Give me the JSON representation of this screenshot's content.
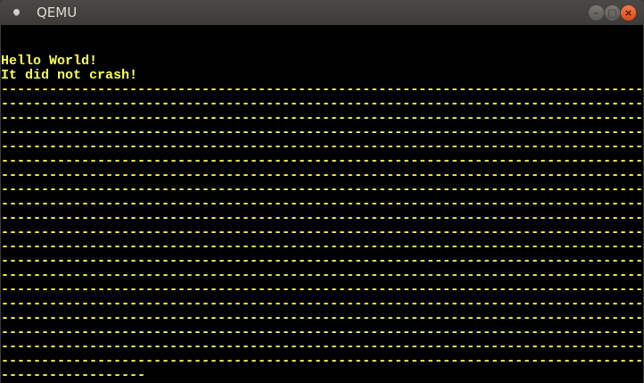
{
  "window": {
    "title": "QEMU",
    "icons": {
      "app": "qemu-app-icon",
      "minimize": "minimize-icon",
      "maximize": "maximize-icon",
      "close": "close-icon"
    },
    "colors": {
      "text": "#ffff55",
      "screen_bg": "#000000",
      "close_button": "#e9541f"
    }
  },
  "screen": {
    "lines": [
      "",
      "",
      "Hello World!",
      "It did not crash!",
      "--------------------------------------------------------------------------------",
      "--------------------------------------------------------------------------------",
      "--------------------------------------------------------------------------------",
      "--------------------------------------------------------------------------------",
      "--------------------------------------------------------------------------------",
      "--------------------------------------------------------------------------------",
      "--------------------------------------------------------------------------------",
      "--------------------------------------------------------------------------------",
      "--------------------------------------------------------------------------------",
      "--------------------------------------------------------------------------------",
      "--------------------------------------------------------------------------------",
      "--------------------------------------------------------------------------------",
      "--------------------------------------------------------------------------------",
      "--------------------------------------------------------------------------------",
      "--------------------------------------------------------------------------------",
      "--------------------------------------------------------------------------------",
      "--------------------------------------------------------------------------------",
      "--------------------------------------------------------------------------------",
      "--------------------------------------------------------------------------------",
      "--------------------------------------------------------------------------------",
      "------------------"
    ]
  }
}
